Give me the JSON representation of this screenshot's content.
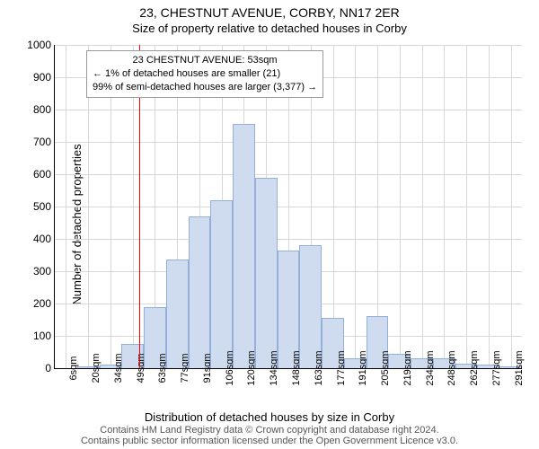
{
  "title_line1": "23, CHESTNUT AVENUE, CORBY, NN17 2ER",
  "title_line2": "Size of property relative to detached houses in Corby",
  "y_axis_label": "Number of detached properties",
  "x_axis_label": "Distribution of detached houses by size in Corby",
  "footer_line1": "Contains HM Land Registry data © Crown copyright and database right 2024.",
  "footer_line2": "Contains public sector information licensed under the Open Government Licence v3.0.",
  "chart": {
    "type": "histogram",
    "ylim": [
      0,
      1000
    ],
    "ytick_step": 100,
    "x_categories": [
      "6sqm",
      "20sqm",
      "34sqm",
      "49sqm",
      "63sqm",
      "77sqm",
      "91sqm",
      "106sqm",
      "120sqm",
      "134sqm",
      "148sqm",
      "163sqm",
      "177sqm",
      "191sqm",
      "205sqm",
      "219sqm",
      "234sqm",
      "248sqm",
      "262sqm",
      "277sqm",
      "291sqm"
    ],
    "values": [
      0,
      5,
      10,
      75,
      190,
      335,
      470,
      520,
      755,
      590,
      365,
      380,
      155,
      30,
      160,
      45,
      30,
      30,
      15,
      10,
      5
    ],
    "bar_fill": "#cfdcf0",
    "bar_stroke": "#94b0da",
    "grid_color": "#d8d8d8",
    "background": "#ffffff",
    "marker": {
      "position_index": 3.3,
      "color": "#ff0000"
    },
    "annotation": {
      "line1": "23 CHESTNUT AVENUE: 53sqm",
      "line2": "← 1% of detached houses are smaller (21)",
      "line3": "99% of semi-detached houses are larger (3,377) →"
    }
  }
}
